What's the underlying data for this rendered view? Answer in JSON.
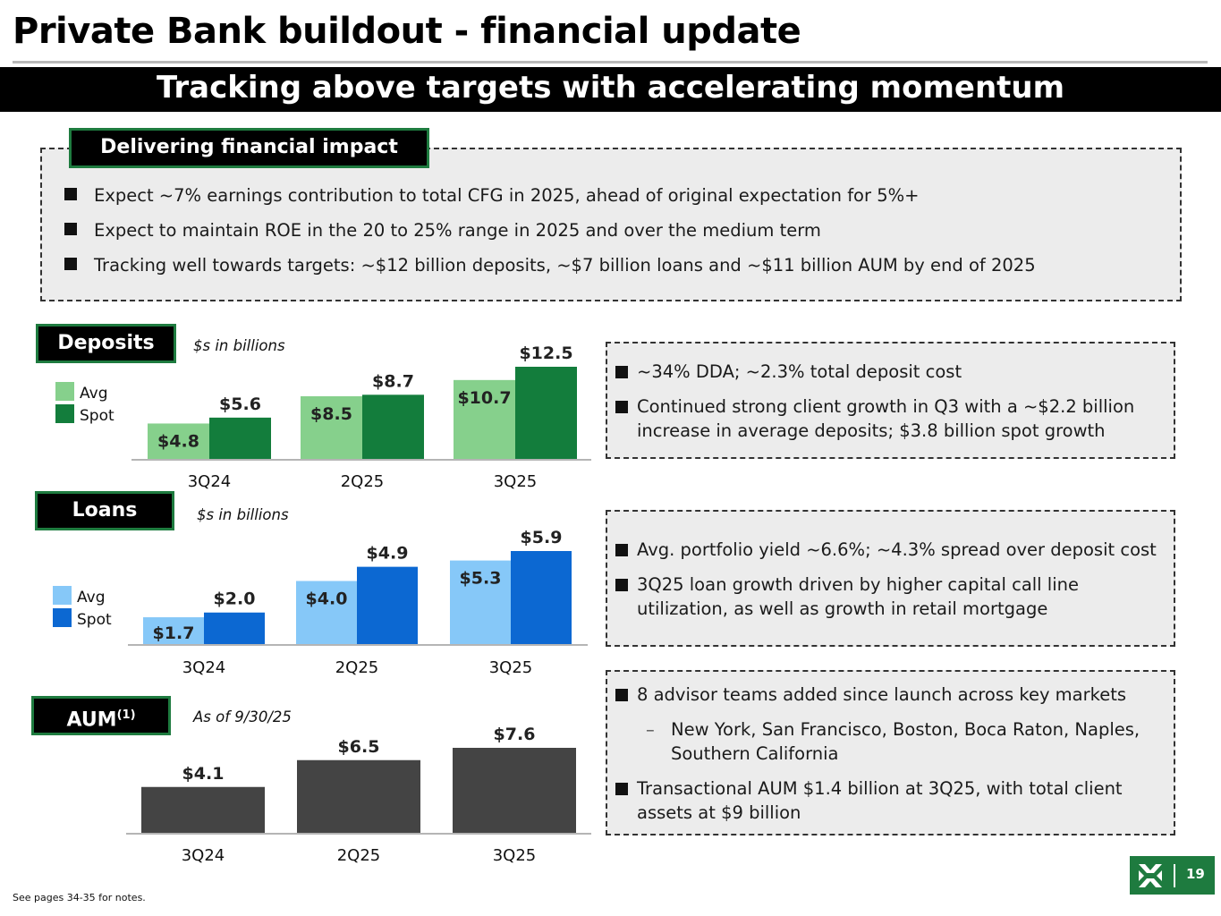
{
  "title": "Private Bank buildout - financial update",
  "banner": "Tracking above targets with accelerating momentum",
  "impact": {
    "tab": "Delivering financial impact",
    "bullets": [
      "Expect ~7% earnings contribution to total CFG in 2025, ahead of original expectation for 5%+",
      "Expect to maintain ROE in the 20 to 25% range in 2025 and over the medium term",
      "Tracking well towards targets: ~$12 billion deposits, ~$7 billion loans and ~$11 billion AUM by end of 2025"
    ]
  },
  "deposits": {
    "tab": "Deposits",
    "units": "$s in billions",
    "bullets": [
      "~34% DDA; ~2.3% total deposit cost",
      "Continued strong client growth in Q3 with a ~$2.2 billion increase in average deposits; $3.8 billion spot growth"
    ]
  },
  "loans": {
    "tab": "Loans",
    "units": "$s in billions",
    "bullets": [
      "Avg. portfolio yield ~6.6%; ~4.3% spread over deposit cost",
      "3Q25 loan growth driven by higher capital call line utilization, as well as growth in retail mortgage"
    ]
  },
  "aum": {
    "tab": "AUM",
    "tab_sup": "(1)",
    "units": "As of 9/30/25",
    "bullets": [
      {
        "text": "8 advisor teams added since launch across key markets",
        "sub": false
      },
      {
        "text": "New York, San Francisco, Boston, Boca Raton, Naples, Southern California",
        "sub": true
      },
      {
        "text": "Transactional AUM $1.4 billion at 3Q25, with total client assets at $9 billion",
        "sub": false
      }
    ]
  },
  "colors": {
    "deposits_avg": "#86d08c",
    "deposits_spot": "#137d3c",
    "loans_avg": "#86c8f8",
    "loans_spot": "#0c68d2",
    "aum": "#444444",
    "brand_green": "#1e7b3f"
  },
  "chart_data": [
    {
      "type": "bar",
      "name": "Deposits",
      "categories": [
        "3Q24",
        "2Q25",
        "3Q25"
      ],
      "series": [
        {
          "name": "Avg",
          "values": [
            4.8,
            8.5,
            10.7
          ],
          "labels": [
            "$4.8",
            "$8.5",
            "$10.7"
          ]
        },
        {
          "name": "Spot",
          "values": [
            5.6,
            8.7,
            12.5
          ],
          "labels": [
            "$5.6",
            "$8.7",
            "$12.5"
          ]
        }
      ],
      "ylim": [
        0,
        12.5
      ],
      "legend": "left"
    },
    {
      "type": "bar",
      "name": "Loans",
      "categories": [
        "3Q24",
        "2Q25",
        "3Q25"
      ],
      "series": [
        {
          "name": "Avg",
          "values": [
            1.7,
            4.0,
            5.3
          ],
          "labels": [
            "$1.7",
            "$4.0",
            "$5.3"
          ]
        },
        {
          "name": "Spot",
          "values": [
            2.0,
            4.9,
            5.9
          ],
          "labels": [
            "$2.0",
            "$4.9",
            "$5.9"
          ]
        }
      ],
      "ylim": [
        0,
        5.9
      ],
      "legend": "left"
    },
    {
      "type": "bar",
      "name": "AUM",
      "categories": [
        "3Q24",
        "2Q25",
        "3Q25"
      ],
      "series": [
        {
          "values": [
            4.1,
            6.5,
            7.6
          ],
          "labels": [
            "$4.1",
            "$6.5",
            "$7.6"
          ]
        }
      ],
      "ylim": [
        0,
        7.6
      ],
      "legend": "none"
    }
  ],
  "footnote": "See pages 34-35 for notes.",
  "page_number": "19",
  "logo_icon": "citizens-logo-icon"
}
